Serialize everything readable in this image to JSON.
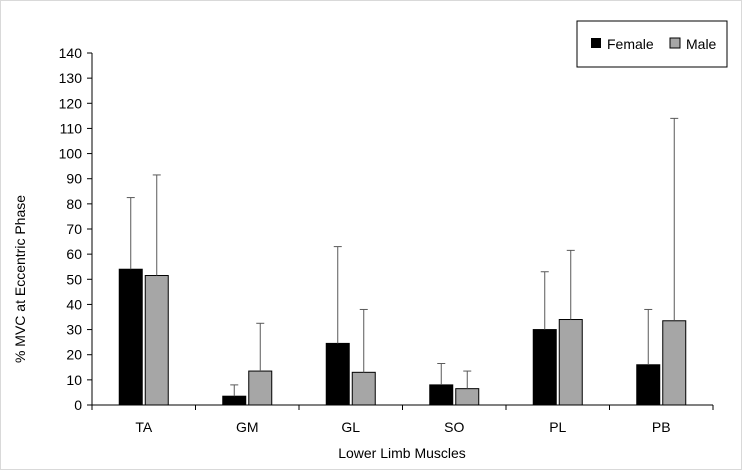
{
  "chart_data": {
    "type": "bar",
    "title": "",
    "xlabel": "Lower Limb Muscles",
    "ylabel": "% MVC at Eccentric Phase",
    "categories": [
      "TA",
      "GM",
      "GL",
      "SO",
      "PL",
      "PB"
    ],
    "ylim": [
      0,
      140
    ],
    "ytick_step": 10,
    "grid": false,
    "legend_position": "top-right",
    "error_bars": "upper",
    "series": [
      {
        "name": "Female",
        "color": "#000000",
        "values": [
          54,
          3.5,
          24.5,
          8,
          30,
          16
        ],
        "errors": [
          28.5,
          4.5,
          38.5,
          8.5,
          23,
          22
        ]
      },
      {
        "name": "Male",
        "color": "#a6a6a6",
        "values": [
          51.5,
          13.5,
          13,
          6.5,
          34,
          33.5
        ],
        "errors": [
          40,
          19,
          25,
          7,
          27.5,
          80.5
        ]
      }
    ]
  }
}
